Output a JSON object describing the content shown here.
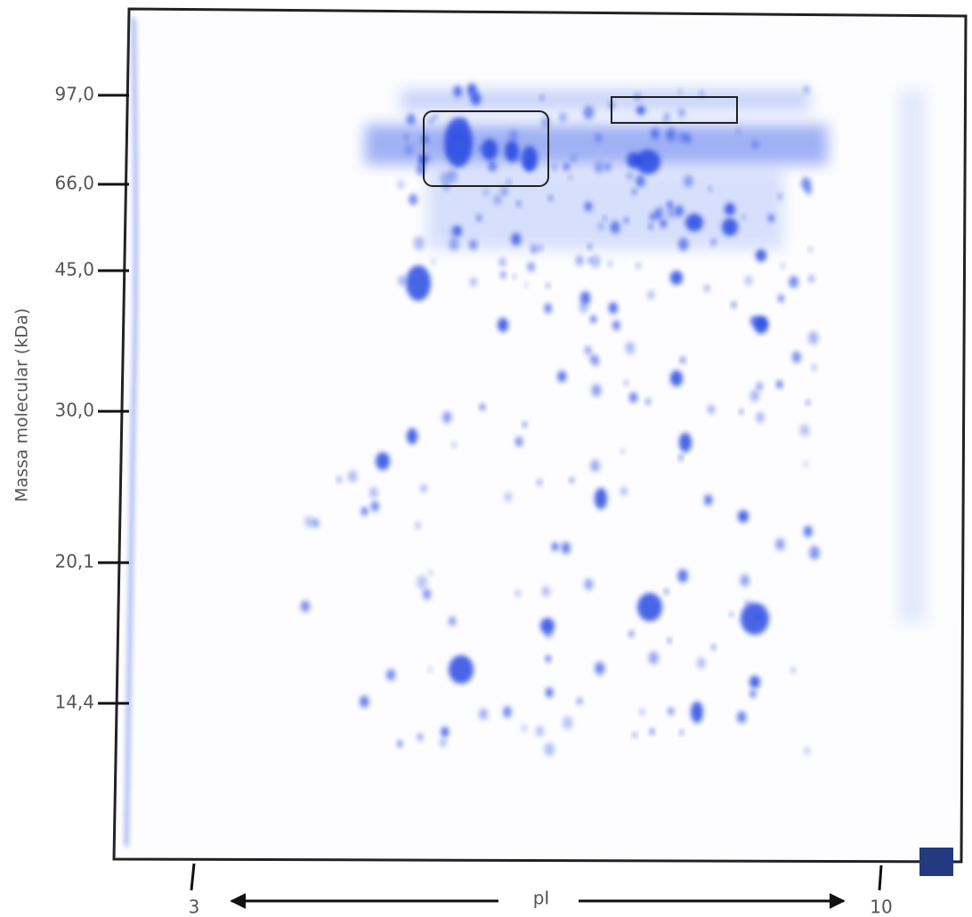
{
  "y_axis": {
    "label": "Massa molecular (kDa)",
    "markers": [
      "97,0",
      "66,0",
      "45,0",
      "30,0",
      "20,1",
      "14,4"
    ]
  },
  "x_axis": {
    "start": "3",
    "label": "pI",
    "end": "10"
  }
}
